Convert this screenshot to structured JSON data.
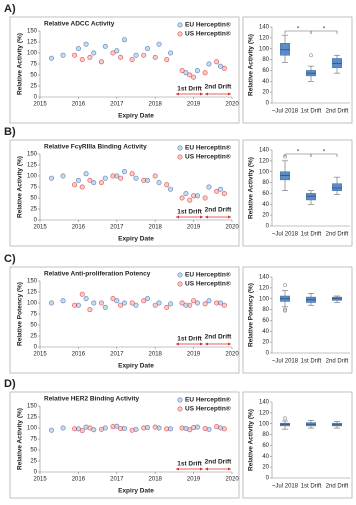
{
  "panel_labels": [
    "A)",
    "B)",
    "C)",
    "D)"
  ],
  "chart_data": [
    {
      "type": "scatter",
      "title": "Relative ADCC Activity",
      "xlabel": "Expiry Date",
      "ylabel": "Relative Activity (%)",
      "xlim": [
        2015,
        2020
      ],
      "xticks": [
        2015,
        2016,
        2017,
        2018,
        2019,
        2020
      ],
      "ylim": [
        0,
        150
      ],
      "yticks": [
        0,
        25,
        50,
        75,
        100,
        125,
        150
      ],
      "annotations": [
        "1st Drift",
        "2nd Drift"
      ],
      "series": [
        {
          "name": "EU Herceptin®",
          "color": "#4f81bd",
          "x": [
            2015.3,
            2015.6,
            2016.0,
            2016.2,
            2016.4,
            2016.7,
            2017.0,
            2017.2,
            2017.5,
            2017.8,
            2018.1,
            2018.4,
            2018.8,
            2019.1,
            2019.4,
            2019.7
          ],
          "values": [
            88,
            95,
            110,
            120,
            100,
            115,
            105,
            130,
            95,
            110,
            120,
            100,
            55,
            60,
            75,
            70
          ]
        },
        {
          "name": "US Herceptin®",
          "color": "#e05050",
          "x": [
            2015.9,
            2016.1,
            2016.3,
            2016.6,
            2016.9,
            2017.1,
            2017.4,
            2017.7,
            2018.0,
            2018.3,
            2018.7,
            2018.9,
            2019.0,
            2019.3,
            2019.6,
            2019.8
          ],
          "values": [
            95,
            85,
            90,
            80,
            100,
            90,
            85,
            95,
            90,
            85,
            60,
            50,
            45,
            55,
            80,
            65
          ]
        }
      ]
    },
    {
      "type": "box",
      "ylabel": "Relative Activity (%)",
      "categories": [
        "~Jul 2018",
        "1st Drift",
        "2nd Drift"
      ],
      "color": "#5b8cc8",
      "ylim": [
        0,
        140
      ],
      "yticks": [
        0,
        20,
        40,
        60,
        80,
        100,
        120,
        140
      ],
      "min": [
        75,
        40,
        55
      ],
      "q1": [
        88,
        50,
        65
      ],
      "median": [
        98,
        55,
        73
      ],
      "q3": [
        110,
        60,
        82
      ],
      "max": [
        125,
        68,
        88
      ],
      "outliers": [
        [],
        [
          88
        ],
        []
      ],
      "significance": [
        {
          "from": 0,
          "to": 1,
          "label": "*"
        },
        {
          "from": 1,
          "to": 2,
          "label": "*"
        }
      ]
    },
    {
      "type": "scatter",
      "title": "Relative FcγRIIIa Binding Activity",
      "xlabel": "Expiry Date",
      "ylabel": "Relative Activity (%)",
      "xlim": [
        2015,
        2020
      ],
      "xticks": [
        2015,
        2016,
        2017,
        2018,
        2019,
        2020
      ],
      "ylim": [
        0,
        150
      ],
      "yticks": [
        0,
        25,
        50,
        75,
        100,
        125,
        150
      ],
      "annotations": [
        "1st Drift",
        "2nd Drift"
      ],
      "series": [
        {
          "name": "EU Herceptin®",
          "color": "#4f81bd",
          "x": [
            2015.3,
            2015.6,
            2016.0,
            2016.2,
            2016.4,
            2016.7,
            2017.0,
            2017.2,
            2017.5,
            2017.8,
            2018.1,
            2018.4,
            2018.8,
            2019.1,
            2019.4,
            2019.7
          ],
          "values": [
            95,
            100,
            90,
            105,
            85,
            95,
            100,
            110,
            95,
            90,
            85,
            70,
            60,
            55,
            75,
            70
          ]
        },
        {
          "name": "US Herceptin®",
          "color": "#e05050",
          "x": [
            2015.9,
            2016.1,
            2016.3,
            2016.6,
            2016.9,
            2017.1,
            2017.4,
            2017.7,
            2018.0,
            2018.3,
            2018.7,
            2018.9,
            2019.0,
            2019.3,
            2019.6,
            2019.8
          ],
          "values": [
            80,
            75,
            90,
            85,
            100,
            95,
            105,
            90,
            100,
            80,
            50,
            45,
            55,
            50,
            65,
            60
          ]
        }
      ]
    },
    {
      "type": "box",
      "ylabel": "Relative Activity (%)",
      "categories": [
        "~Jul 2018",
        "1st Drift",
        "2nd Drift"
      ],
      "color": "#5b8cc8",
      "ylim": [
        0,
        140
      ],
      "yticks": [
        0,
        20,
        40,
        60,
        80,
        100,
        120,
        140
      ],
      "min": [
        65,
        40,
        58
      ],
      "q1": [
        85,
        48,
        65
      ],
      "median": [
        93,
        55,
        70
      ],
      "q3": [
        100,
        60,
        78
      ],
      "max": [
        120,
        65,
        90
      ],
      "outliers": [
        [
          128
        ],
        [],
        []
      ],
      "significance": [
        {
          "from": 0,
          "to": 1,
          "label": "*"
        },
        {
          "from": 1,
          "to": 2,
          "label": "*"
        }
      ]
    },
    {
      "type": "scatter",
      "title": "Relative Anti-proliferation Potency",
      "xlabel": "Expiry Date",
      "ylabel": "Relative Potency (%)",
      "xlim": [
        2015,
        2020
      ],
      "xticks": [
        2015,
        2016,
        2017,
        2018,
        2019,
        2020
      ],
      "ylim": [
        0,
        150
      ],
      "yticks": [
        0,
        25,
        50,
        75,
        100,
        125,
        150
      ],
      "annotations": [
        "1st Drift",
        "2nd Drift"
      ],
      "series": [
        {
          "name": "EU Herceptin®",
          "color": "#4f81bd",
          "x": [
            2015.3,
            2015.6,
            2016.0,
            2016.2,
            2016.4,
            2016.7,
            2017.0,
            2017.2,
            2017.5,
            2017.8,
            2018.1,
            2018.4,
            2018.8,
            2019.1,
            2019.4,
            2019.7
          ],
          "values": [
            100,
            105,
            95,
            110,
            100,
            90,
            105,
            100,
            95,
            110,
            100,
            98,
            95,
            100,
            105,
            100
          ]
        },
        {
          "name": "US Herceptin®",
          "color": "#e05050",
          "x": [
            2015.9,
            2016.1,
            2016.3,
            2016.6,
            2016.9,
            2017.1,
            2017.4,
            2017.7,
            2018.0,
            2018.3,
            2018.7,
            2018.9,
            2019.0,
            2019.3,
            2019.6,
            2019.8
          ],
          "values": [
            95,
            120,
            85,
            100,
            110,
            95,
            100,
            105,
            95,
            90,
            100,
            95,
            105,
            98,
            100,
            95
          ]
        }
      ]
    },
    {
      "type": "box",
      "ylabel": "Relative Potency (%)",
      "categories": [
        "~Jul 2018",
        "1st Drift",
        "2nd Drift"
      ],
      "color": "#5b8cc8",
      "ylim": [
        0,
        140
      ],
      "yticks": [
        0,
        20,
        40,
        60,
        80,
        100,
        120,
        140
      ],
      "min": [
        85,
        88,
        93
      ],
      "q1": [
        95,
        93,
        97
      ],
      "median": [
        100,
        98,
        100
      ],
      "q3": [
        105,
        103,
        103
      ],
      "max": [
        115,
        110,
        105
      ],
      "outliers": [
        [
          78,
          80,
          125
        ],
        [],
        []
      ],
      "significance": []
    },
    {
      "type": "scatter",
      "title": "Relative HER2 Binding Activity",
      "xlabel": "Expiry Date",
      "ylabel": "Relative Activity (%)",
      "xlim": [
        2015,
        2020
      ],
      "xticks": [
        2015,
        2016,
        2017,
        2018,
        2019,
        2020
      ],
      "ylim": [
        0,
        150
      ],
      "yticks": [
        0,
        25,
        50,
        75,
        100,
        125,
        150
      ],
      "annotations": [
        "1st Drift",
        "2nd Drift"
      ],
      "series": [
        {
          "name": "EU Herceptin®",
          "color": "#4f81bd",
          "x": [
            2015.3,
            2015.6,
            2016.0,
            2016.2,
            2016.4,
            2016.7,
            2017.0,
            2017.2,
            2017.5,
            2017.8,
            2018.1,
            2018.4,
            2018.8,
            2019.1,
            2019.4,
            2019.7
          ],
          "values": [
            95,
            100,
            98,
            102,
            96,
            100,
            104,
            99,
            97,
            101,
            100,
            98,
            99,
            102,
            97,
            100
          ]
        },
        {
          "name": "US Herceptin®",
          "color": "#e05050",
          "x": [
            2015.9,
            2016.1,
            2016.3,
            2016.6,
            2016.9,
            2017.1,
            2017.4,
            2017.7,
            2018.0,
            2018.3,
            2018.7,
            2018.9,
            2019.0,
            2019.3,
            2019.6,
            2019.8
          ],
          "values": [
            98,
            94,
            100,
            97,
            103,
            99,
            95,
            100,
            102,
            98,
            100,
            96,
            101,
            99,
            103,
            98
          ]
        }
      ]
    },
    {
      "type": "box",
      "ylabel": "Relative Activity (%)",
      "categories": [
        "~Jul 2018",
        "1st Drift",
        "2nd Drift"
      ],
      "color": "#5b8cc8",
      "ylim": [
        0,
        140
      ],
      "yticks": [
        0,
        20,
        40,
        60,
        80,
        100,
        120,
        140
      ],
      "min": [
        90,
        92,
        92
      ],
      "q1": [
        96,
        96,
        96
      ],
      "median": [
        99,
        99,
        98
      ],
      "q3": [
        101,
        102,
        101
      ],
      "max": [
        105,
        106,
        104
      ],
      "outliers": [
        [
          110
        ],
        [],
        []
      ],
      "significance": []
    }
  ]
}
